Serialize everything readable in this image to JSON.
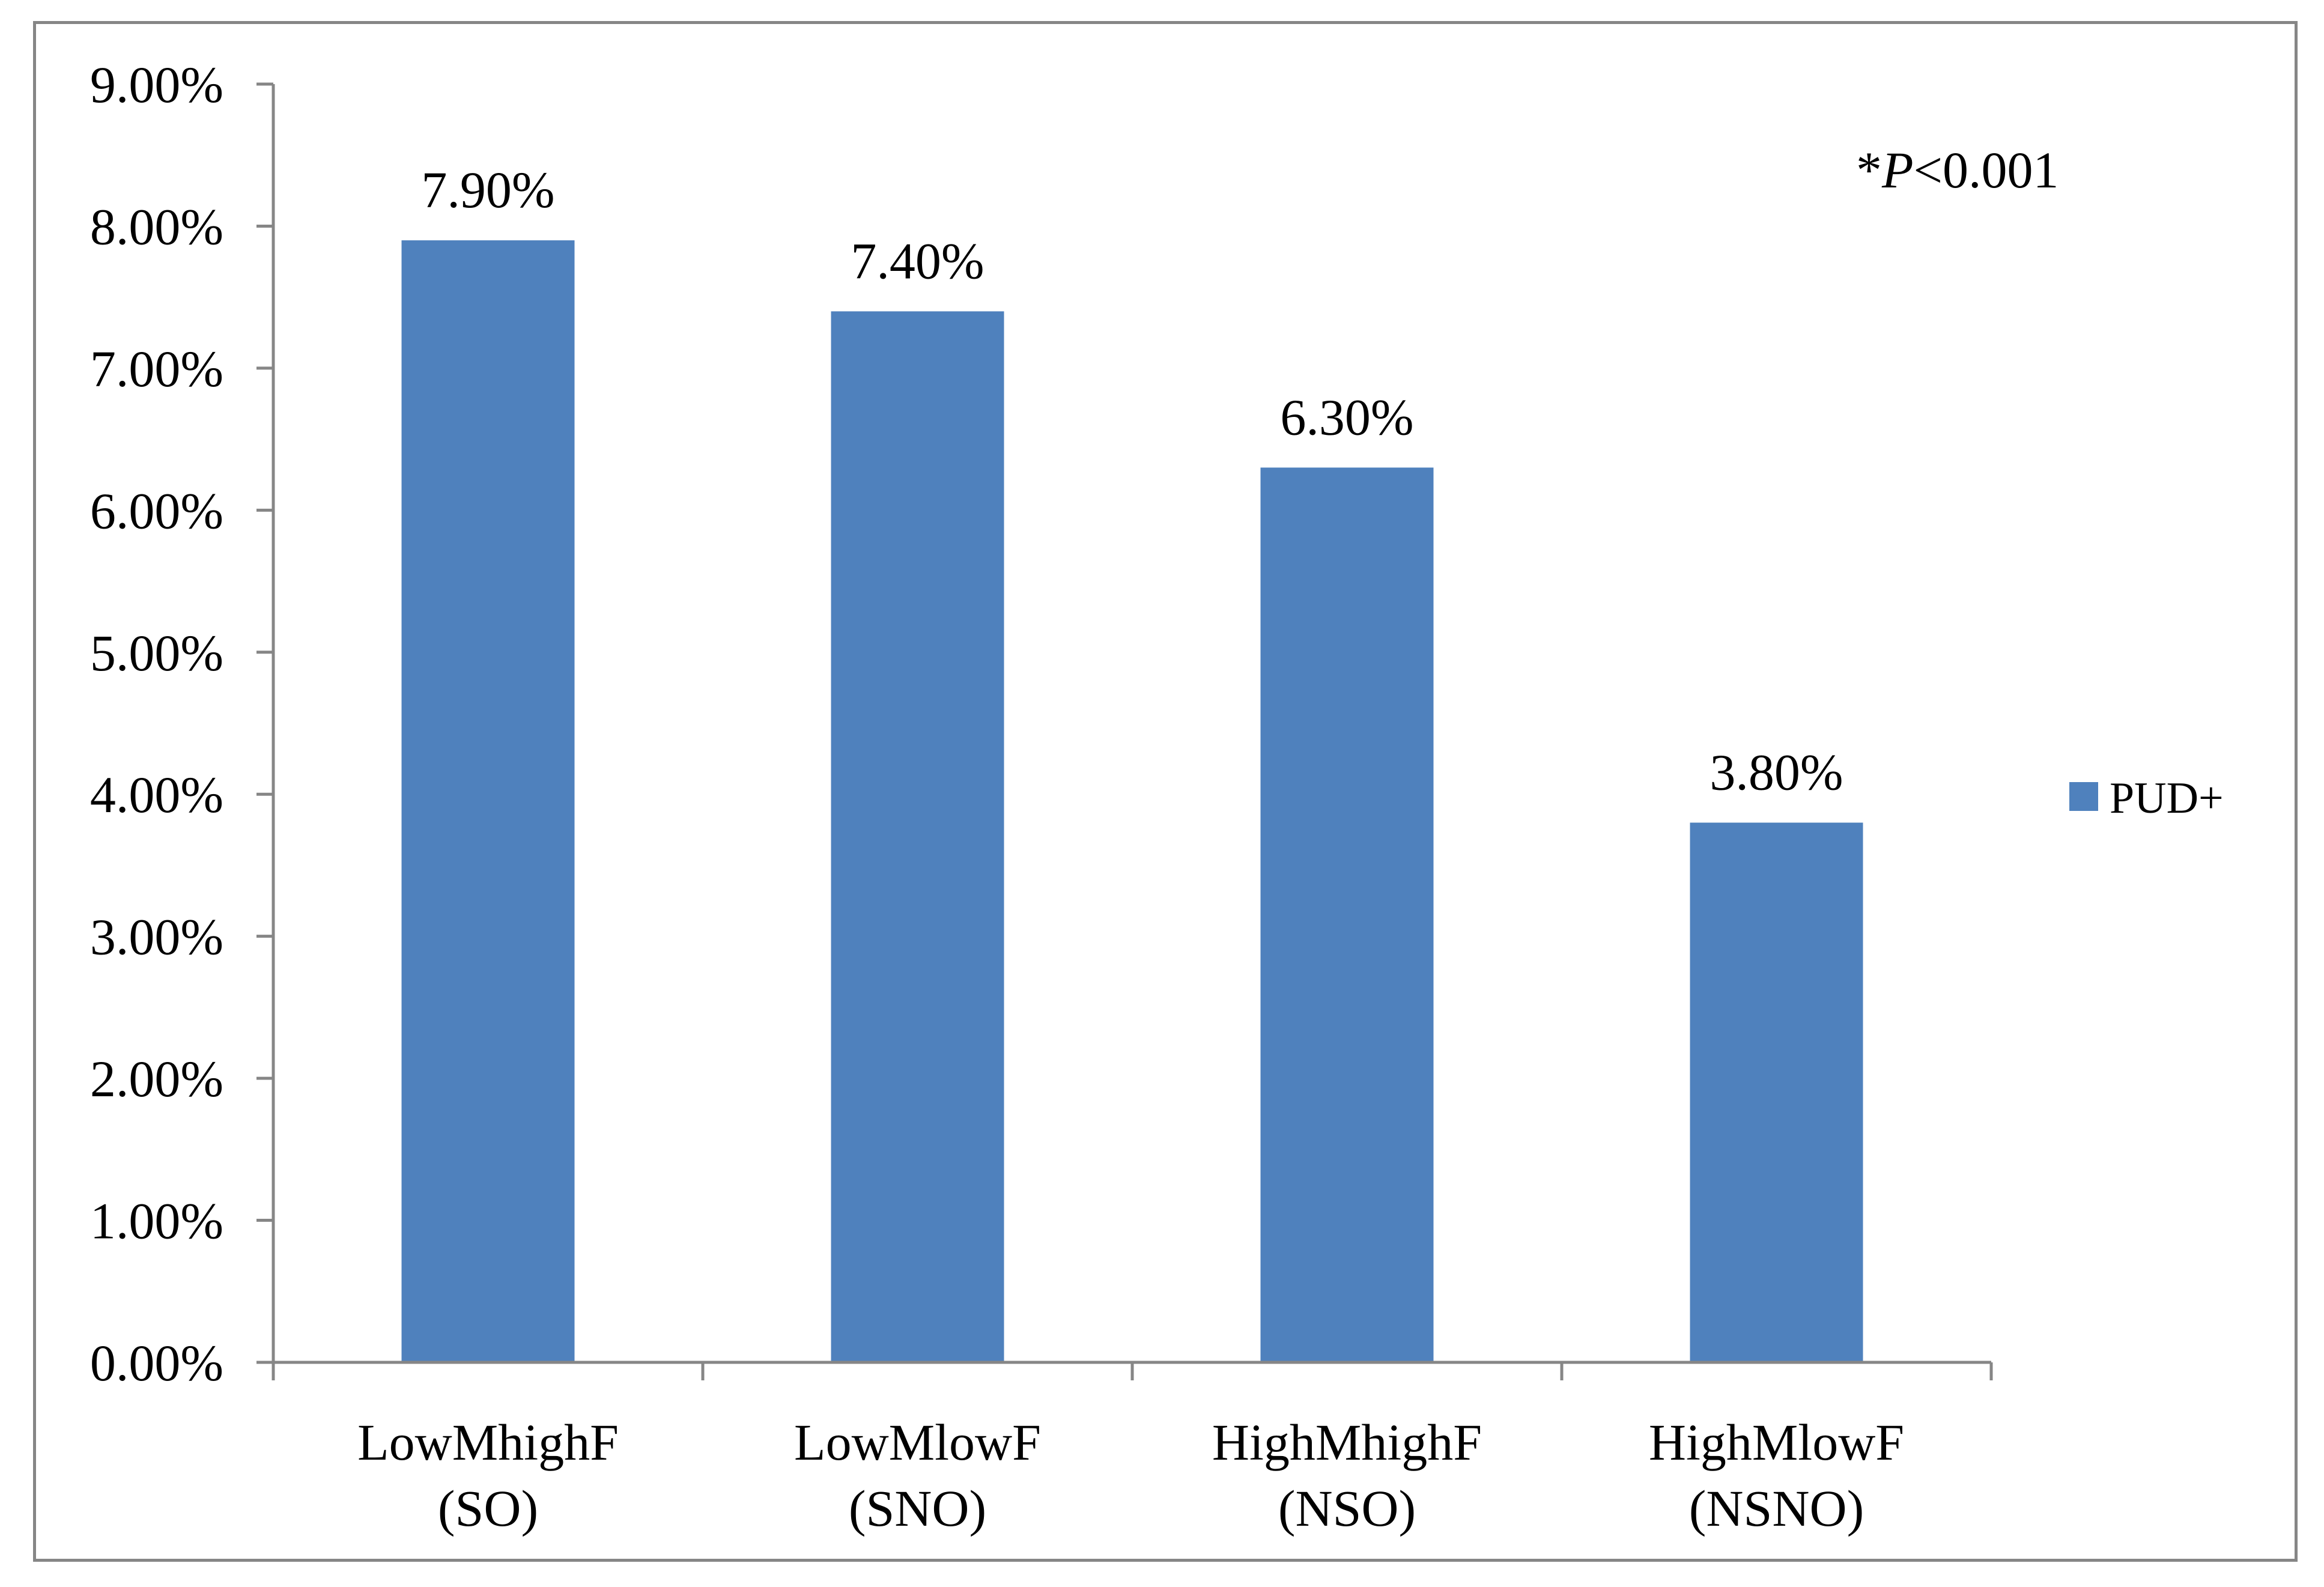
{
  "chart_data": {
    "type": "bar",
    "categories": [
      [
        "LowMhighF",
        "(SO)"
      ],
      [
        "LowMlowF",
        "(SNO)"
      ],
      [
        "HighMhighF",
        "(NSO)"
      ],
      [
        "HighMlowF",
        "(NSNO)"
      ]
    ],
    "series": [
      {
        "name": "PUD+",
        "values": [
          7.9,
          7.4,
          6.3,
          3.8
        ],
        "color": "#4F81BD"
      }
    ],
    "data_labels": [
      "7.90%",
      "7.40%",
      "6.30%",
      "3.80%"
    ],
    "y_ticks": [
      "0.00%",
      "1.00%",
      "2.00%",
      "3.00%",
      "4.00%",
      "5.00%",
      "6.00%",
      "7.00%",
      "8.00%",
      "9.00%"
    ],
    "ylim": [
      0,
      9
    ],
    "grid": false,
    "legend_position": "right",
    "annotation": {
      "prefix": "*",
      "italic": "P",
      "suffix": "<0.001"
    },
    "axis_color": "#868686"
  }
}
